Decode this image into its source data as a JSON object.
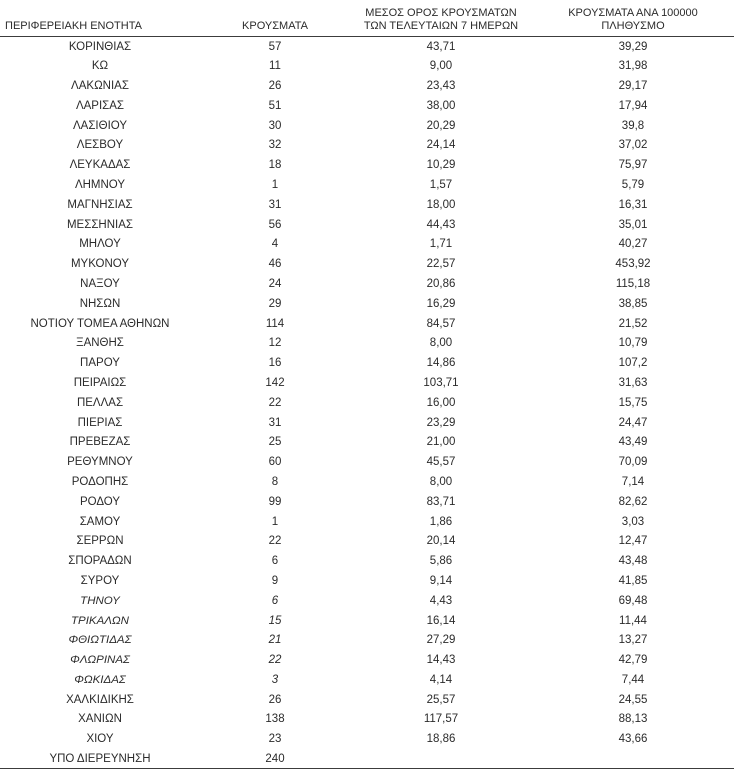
{
  "table": {
    "headers": {
      "region": "ΠΕΡΙΦΕΡΕΙΑΚΗ ΕΝΟΤΗΤΑ",
      "cases": "ΚΡΟΥΣΜΑΤΑ",
      "avg7_line1": "ΜΕΣΟΣ ΟΡΟΣ ΚΡΟΥΣΜΑΤΩΝ",
      "avg7_line2": "ΤΩΝ ΤΕΛΕΥΤΑΙΩΝ 7 ΗΜΕΡΩΝ",
      "per100k_line1": "ΚΡΟΥΣΜΑΤΑ ΑΝΑ 100000",
      "per100k_line2": "ΠΛΗΘΥΣΜΟ"
    },
    "rows": [
      {
        "region": "ΚΟΡΙΝΘΙΑΣ",
        "cases": "57",
        "avg7": "43,71",
        "per100k": "39,29",
        "italic": false
      },
      {
        "region": "ΚΩ",
        "cases": "11",
        "avg7": "9,00",
        "per100k": "31,98",
        "italic": false
      },
      {
        "region": "ΛΑΚΩΝΙΑΣ",
        "cases": "26",
        "avg7": "23,43",
        "per100k": "29,17",
        "italic": false
      },
      {
        "region": "ΛΑΡΙΣΑΣ",
        "cases": "51",
        "avg7": "38,00",
        "per100k": "17,94",
        "italic": false
      },
      {
        "region": "ΛΑΣΙΘΙΟΥ",
        "cases": "30",
        "avg7": "20,29",
        "per100k": "39,8",
        "italic": false
      },
      {
        "region": "ΛΕΣΒΟΥ",
        "cases": "32",
        "avg7": "24,14",
        "per100k": "37,02",
        "italic": false
      },
      {
        "region": "ΛΕΥΚΑΔΑΣ",
        "cases": "18",
        "avg7": "10,29",
        "per100k": "75,97",
        "italic": false
      },
      {
        "region": "ΛΗΜΝΟΥ",
        "cases": "1",
        "avg7": "1,57",
        "per100k": "5,79",
        "italic": false
      },
      {
        "region": "ΜΑΓΝΗΣΙΑΣ",
        "cases": "31",
        "avg7": "18,00",
        "per100k": "16,31",
        "italic": false
      },
      {
        "region": "ΜΕΣΣΗΝΙΑΣ",
        "cases": "56",
        "avg7": "44,43",
        "per100k": "35,01",
        "italic": false
      },
      {
        "region": "ΜΗΛΟΥ",
        "cases": "4",
        "avg7": "1,71",
        "per100k": "40,27",
        "italic": false
      },
      {
        "region": "ΜΥΚΟΝΟΥ",
        "cases": "46",
        "avg7": "22,57",
        "per100k": "453,92",
        "italic": false
      },
      {
        "region": "ΝΑΞΟΥ",
        "cases": "24",
        "avg7": "20,86",
        "per100k": "115,18",
        "italic": false
      },
      {
        "region": "ΝΗΣΩΝ",
        "cases": "29",
        "avg7": "16,29",
        "per100k": "38,85",
        "italic": false
      },
      {
        "region": "ΝΟΤΙΟΥ ΤΟΜΕΑ ΑΘΗΝΩΝ",
        "cases": "114",
        "avg7": "84,57",
        "per100k": "21,52",
        "italic": false
      },
      {
        "region": "ΞΑΝΘΗΣ",
        "cases": "12",
        "avg7": "8,00",
        "per100k": "10,79",
        "italic": false
      },
      {
        "region": "ΠΑΡΟΥ",
        "cases": "16",
        "avg7": "14,86",
        "per100k": "107,2",
        "italic": false
      },
      {
        "region": "ΠΕΙΡΑΙΩΣ",
        "cases": "142",
        "avg7": "103,71",
        "per100k": "31,63",
        "italic": false
      },
      {
        "region": "ΠΕΛΛΑΣ",
        "cases": "22",
        "avg7": "16,00",
        "per100k": "15,75",
        "italic": false
      },
      {
        "region": "ΠΙΕΡΙΑΣ",
        "cases": "31",
        "avg7": "23,29",
        "per100k": "24,47",
        "italic": false
      },
      {
        "region": "ΠΡΕΒΕΖΑΣ",
        "cases": "25",
        "avg7": "21,00",
        "per100k": "43,49",
        "italic": false
      },
      {
        "region": "ΡΕΘΥΜΝΟΥ",
        "cases": "60",
        "avg7": "45,57",
        "per100k": "70,09",
        "italic": false
      },
      {
        "region": "ΡΟΔΟΠΗΣ",
        "cases": "8",
        "avg7": "8,00",
        "per100k": "7,14",
        "italic": false
      },
      {
        "region": "ΡΟΔΟΥ",
        "cases": "99",
        "avg7": "83,71",
        "per100k": "82,62",
        "italic": false
      },
      {
        "region": "ΣΑΜΟΥ",
        "cases": "1",
        "avg7": "1,86",
        "per100k": "3,03",
        "italic": false
      },
      {
        "region": "ΣΕΡΡΩΝ",
        "cases": "22",
        "avg7": "20,14",
        "per100k": "12,47",
        "italic": false
      },
      {
        "region": "ΣΠΟΡΑΔΩΝ",
        "cases": "6",
        "avg7": "5,86",
        "per100k": "43,48",
        "italic": false
      },
      {
        "region": "ΣΥΡΟΥ",
        "cases": "9",
        "avg7": "9,14",
        "per100k": "41,85",
        "italic": false
      },
      {
        "region": "ΤΗΝΟΥ",
        "cases": "6",
        "avg7": "4,43",
        "per100k": "69,48",
        "italic": true
      },
      {
        "region": "ΤΡΙΚΑΛΩΝ",
        "cases": "15",
        "avg7": "16,14",
        "per100k": "11,44",
        "italic": true
      },
      {
        "region": "ΦΘΙΩΤΙΔΑΣ",
        "cases": "21",
        "avg7": "27,29",
        "per100k": "13,27",
        "italic": true
      },
      {
        "region": "ΦΛΩΡΙΝΑΣ",
        "cases": "22",
        "avg7": "14,43",
        "per100k": "42,79",
        "italic": true
      },
      {
        "region": "ΦΩΚΙΔΑΣ",
        "cases": "3",
        "avg7": "4,14",
        "per100k": "7,44",
        "italic": true
      },
      {
        "region": "ΧΑΛΚΙΔΙΚΗΣ",
        "cases": "26",
        "avg7": "25,57",
        "per100k": "24,55",
        "italic": false
      },
      {
        "region": "ΧΑΝΙΩΝ",
        "cases": "138",
        "avg7": "117,57",
        "per100k": "88,13",
        "italic": false
      },
      {
        "region": "ΧΙΟΥ",
        "cases": "23",
        "avg7": "18,86",
        "per100k": "43,66",
        "italic": false
      },
      {
        "region": "ΥΠΟ ΔΙΕΡΕΥΝΗΣΗ",
        "cases": "240",
        "avg7": "",
        "per100k": "",
        "italic": false
      }
    ]
  },
  "colors": {
    "text": "#2b2b2b",
    "rule_line": "#3c3c3c",
    "background": "#ffffff"
  }
}
